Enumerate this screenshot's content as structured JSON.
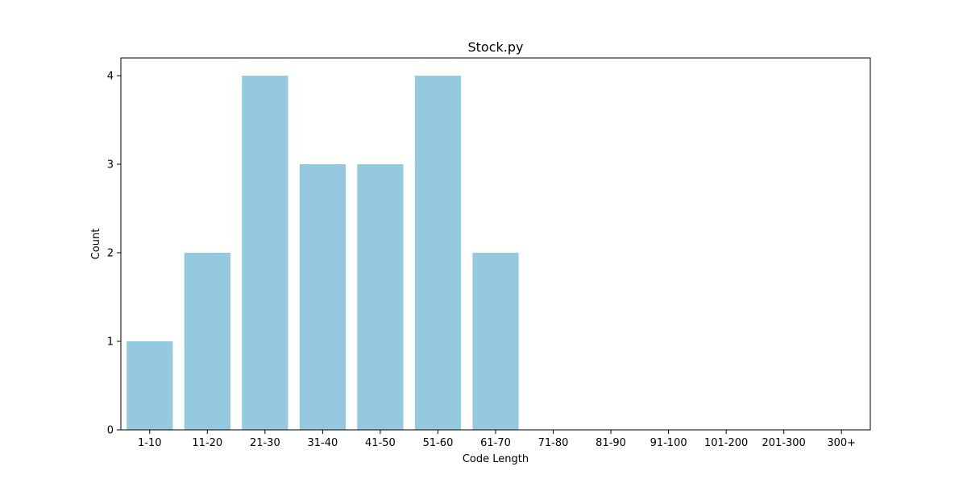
{
  "chart_data": {
    "type": "bar",
    "title": "Stock.py",
    "xlabel": "Code Length",
    "ylabel": "Count",
    "categories": [
      "1-10",
      "11-20",
      "21-30",
      "31-40",
      "41-50",
      "51-60",
      "61-70",
      "71-80",
      "81-90",
      "91-100",
      "101-200",
      "201-300",
      "300+"
    ],
    "values": [
      1,
      2,
      4,
      3,
      3,
      4,
      2,
      0,
      0,
      0,
      0,
      0,
      0
    ],
    "ylim": [
      0,
      4.2
    ],
    "yticks": [
      0,
      1,
      2,
      3,
      4
    ],
    "grid": false,
    "bar_color": "#95c9df"
  }
}
